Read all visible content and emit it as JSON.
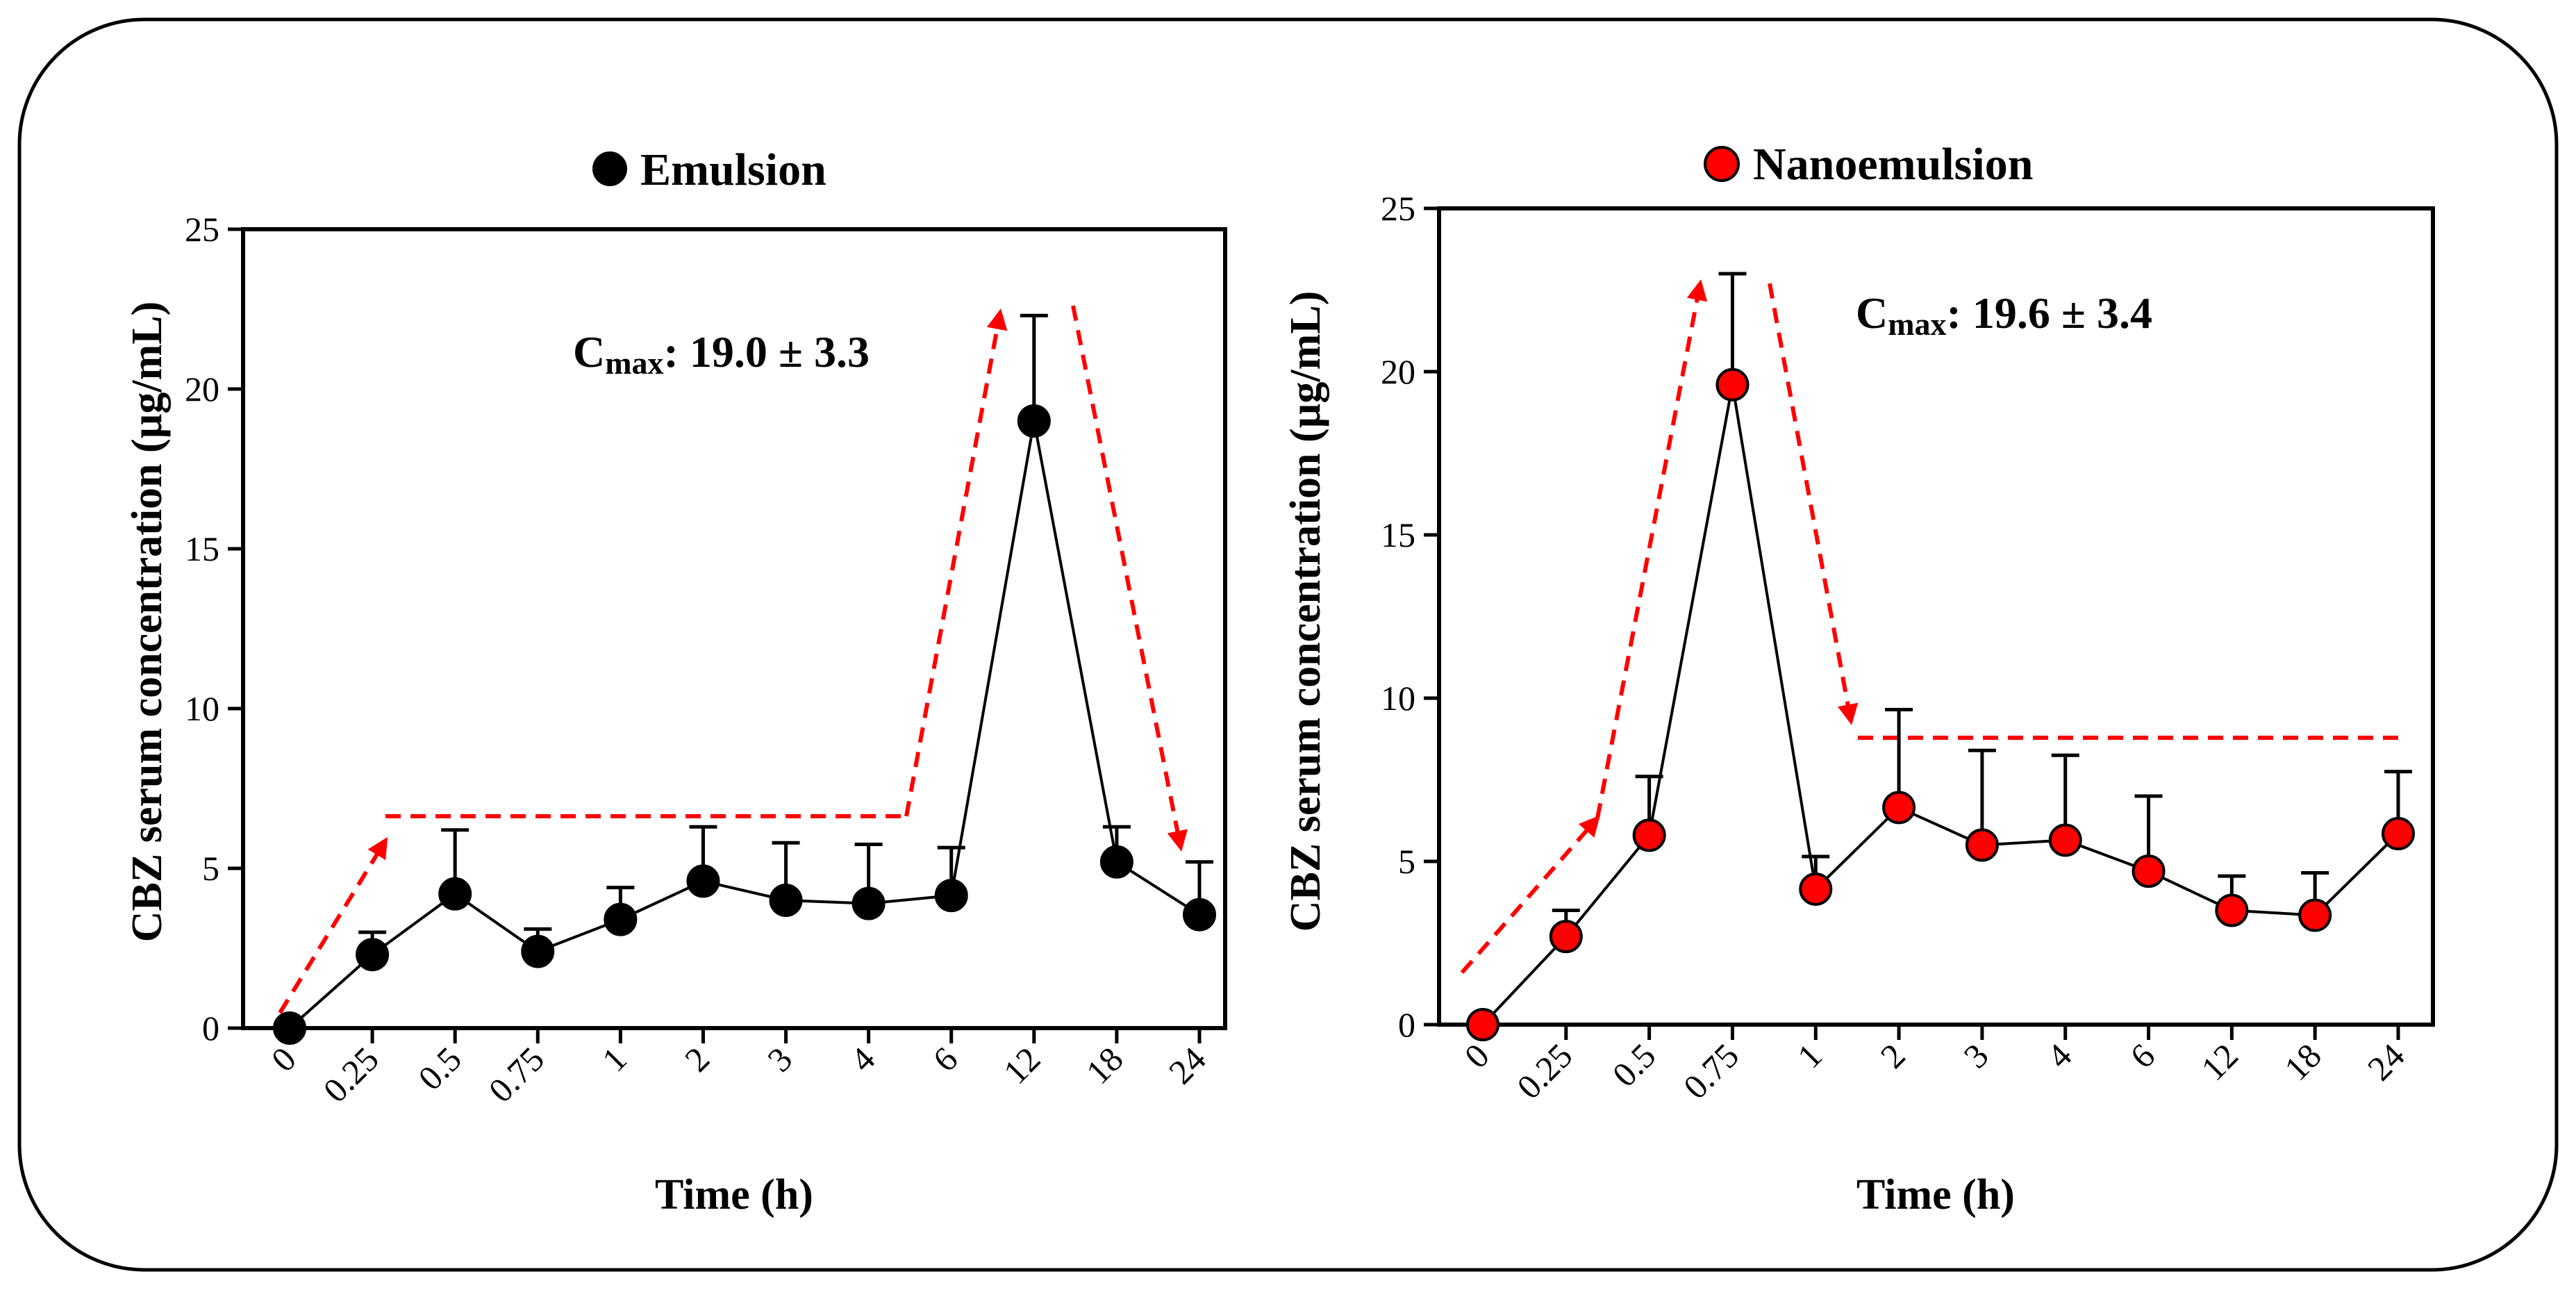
{
  "chart_data": [
    {
      "type": "line",
      "title": "Emulsion",
      "xlabel": "Time (h)",
      "ylabel": "CBZ serum concentration (µg/mL)",
      "ylim": [
        0,
        25
      ],
      "yticks": [
        "0",
        "5",
        "10",
        "15",
        "20",
        "25"
      ],
      "categories": [
        "0",
        "0.25",
        "0.5",
        "0.75",
        "1",
        "2",
        "3",
        "4",
        "6",
        "12",
        "18",
        "24"
      ],
      "series": [
        {
          "name": "Emulsion",
          "color": "#000000",
          "values": [
            0,
            2.3,
            4.2,
            2.4,
            3.4,
            4.6,
            4.0,
            3.9,
            4.15,
            19.0,
            5.2,
            3.55
          ],
          "errors": [
            0,
            0.7,
            2.0,
            0.7,
            1.0,
            1.7,
            1.8,
            1.85,
            1.5,
            3.3,
            1.1,
            1.65
          ]
        }
      ],
      "annotation": {
        "prefix": "C",
        "subscript": "max",
        "text": ": 19.0 ± 3.3"
      },
      "trend_color": "#ff0000"
    },
    {
      "type": "line",
      "title": "Nanoemulsion",
      "xlabel": "Time (h)",
      "ylabel": "CBZ serum concentration (µg/mL)",
      "ylim": [
        0,
        25
      ],
      "yticks": [
        "0",
        "5",
        "10",
        "15",
        "20",
        "25"
      ],
      "categories": [
        "0",
        "0.25",
        "0.5",
        "0.75",
        "1",
        "2",
        "3",
        "4",
        "6",
        "12",
        "18",
        "24"
      ],
      "series": [
        {
          "name": "Nanoemulsion",
          "color": "#ff0000",
          "values": [
            0,
            2.7,
            5.8,
            19.6,
            4.15,
            6.65,
            5.5,
            5.65,
            4.7,
            3.5,
            3.35,
            5.85
          ],
          "errors": [
            0,
            0.8,
            1.8,
            3.4,
            1.0,
            3.0,
            2.9,
            2.6,
            2.3,
            1.05,
            1.3,
            1.9
          ]
        }
      ],
      "annotation": {
        "prefix": "C",
        "subscript": "max",
        "text": ": 19.6 ± 3.4"
      },
      "trend_color": "#ff0000"
    }
  ]
}
